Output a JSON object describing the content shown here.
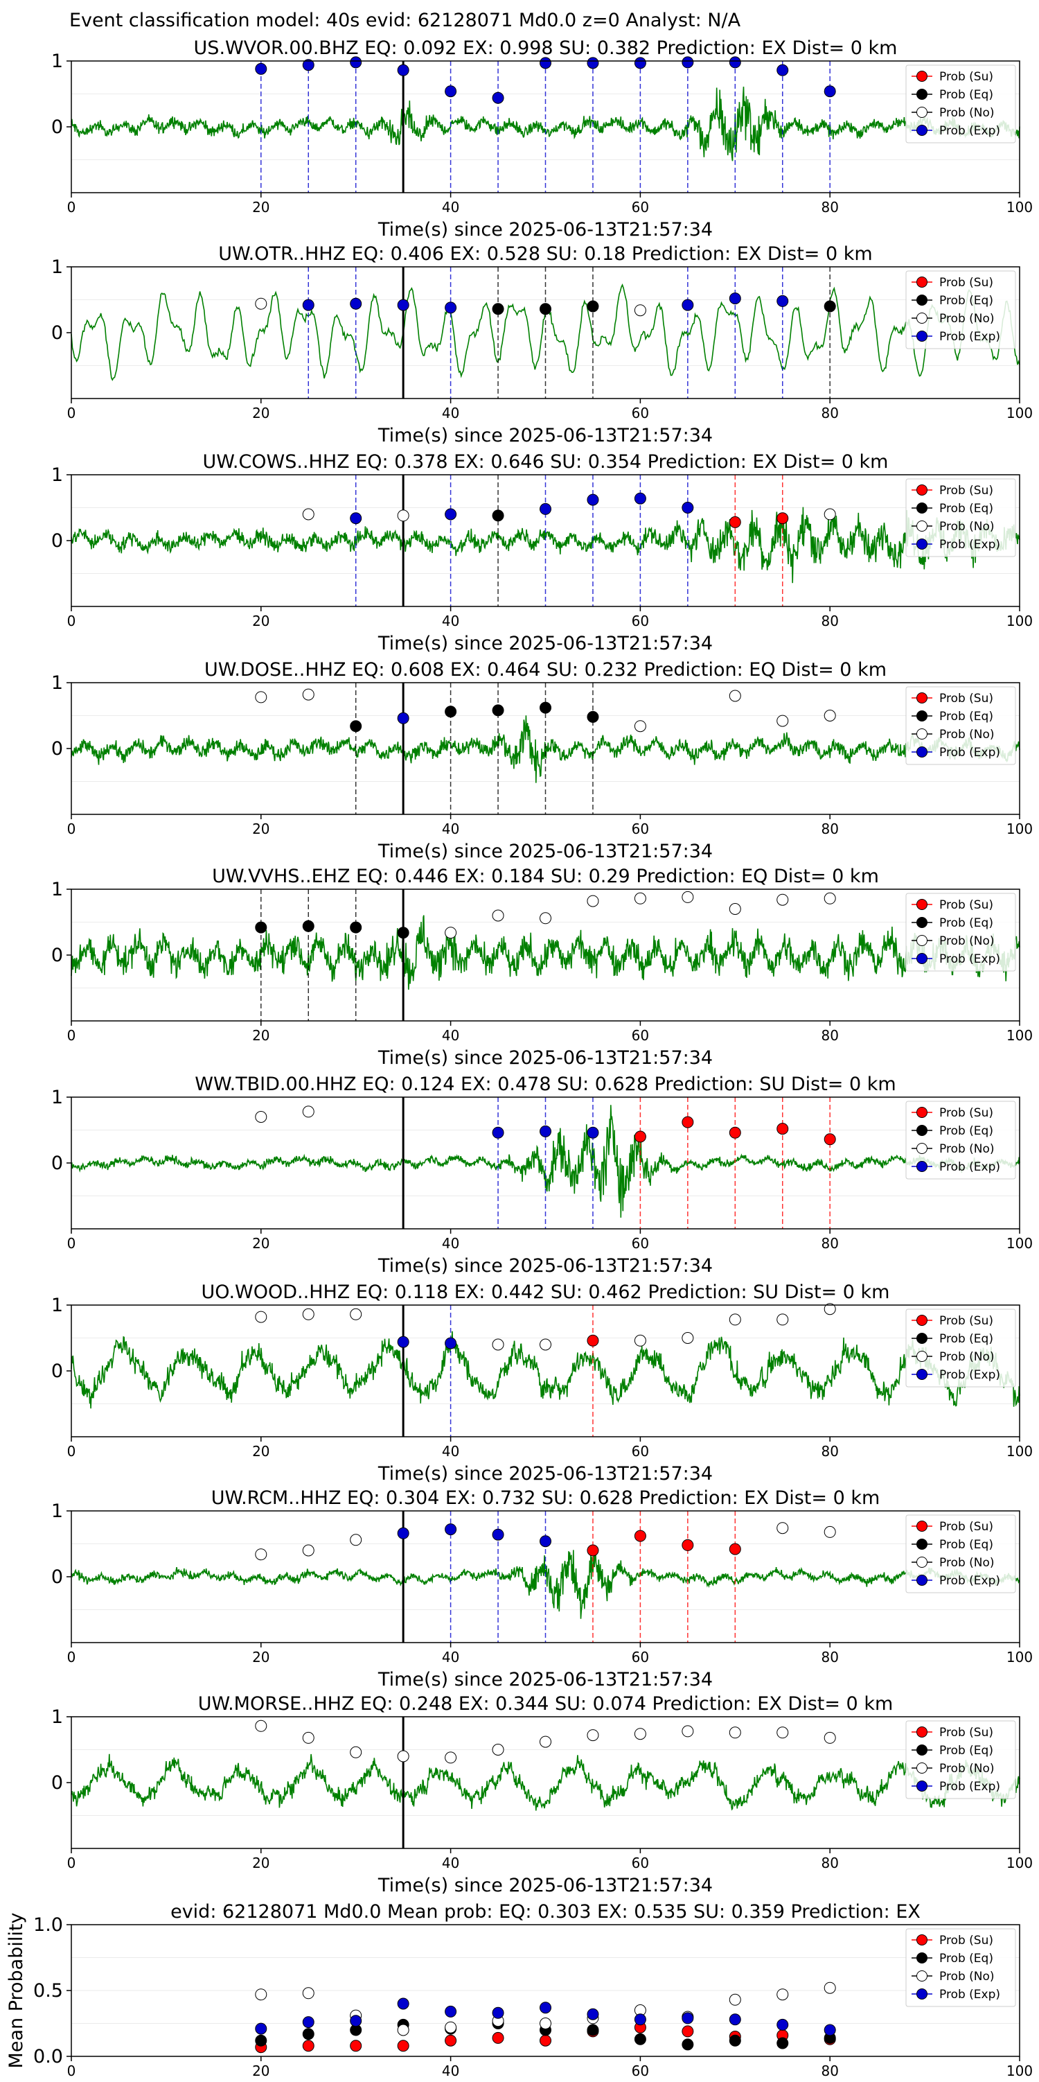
{
  "figure": {
    "suptitle": "Event classification model: 40s evid: 62128071 Md0.0 z=0 Analyst: N/A"
  },
  "legend_labels": [
    "Prob (Su)",
    "Prob (Eq)",
    "Prob (No)",
    "Prob (Exp)"
  ],
  "colors": {
    "waveform": "#008000",
    "su": "#ff0000",
    "eq": "#000000",
    "no": "#ffffff",
    "exp": "#0000cd"
  },
  "chart_data": [
    {
      "type": "line",
      "station": "US.WVOR.00.BHZ",
      "title": "US.WVOR.00.BHZ   EQ: 0.092  EX: 0.998  SU: 0.382   Prediction: EX    Dist= 0 km",
      "xlabel": "Time(s) since 2025-06-13T21:57:34",
      "xlim": [
        0,
        100
      ],
      "ylim": [
        -1,
        1
      ],
      "xticks": [
        0,
        20,
        40,
        60,
        80,
        100
      ],
      "yticks": [
        0,
        1
      ],
      "pick_time": 35,
      "waveform": {
        "amplitude": 0.18,
        "bursts": [
          {
            "t": 70,
            "a": 0.7,
            "w": 4
          },
          {
            "t": 35,
            "a": 0.35,
            "w": 2
          }
        ],
        "style": "noisy"
      },
      "windows": [
        {
          "t": 20,
          "cls": "Exp",
          "p": 0.88
        },
        {
          "t": 25,
          "cls": "Exp",
          "p": 0.94
        },
        {
          "t": 30,
          "cls": "Exp",
          "p": 0.98
        },
        {
          "t": 35,
          "cls": "Exp",
          "p": 0.86
        },
        {
          "t": 40,
          "cls": "Exp",
          "p": 0.54
        },
        {
          "t": 45,
          "cls": "Exp",
          "p": 0.44
        },
        {
          "t": 50,
          "cls": "Exp",
          "p": 0.97
        },
        {
          "t": 55,
          "cls": "Exp",
          "p": 0.97
        },
        {
          "t": 60,
          "cls": "Exp",
          "p": 0.97
        },
        {
          "t": 65,
          "cls": "Exp",
          "p": 0.98
        },
        {
          "t": 70,
          "cls": "Exp",
          "p": 0.98
        },
        {
          "t": 75,
          "cls": "Exp",
          "p": 0.86
        },
        {
          "t": 80,
          "cls": "Exp",
          "p": 0.54
        }
      ]
    },
    {
      "type": "line",
      "station": "UW.OTR..HHZ",
      "title": "UW.OTR..HHZ   EQ: 0.406  EX: 0.528  SU: 0.18   Prediction: EX    Dist= 0 km",
      "xlabel": "Time(s) since 2025-06-13T21:57:34",
      "xlim": [
        0,
        100
      ],
      "ylim": [
        -1,
        1
      ],
      "xticks": [
        0,
        20,
        40,
        60,
        80,
        100
      ],
      "yticks": [
        0,
        1
      ],
      "pick_time": 35,
      "waveform": {
        "amplitude": 0.6,
        "bursts": [],
        "style": "smooth"
      },
      "windows": [
        {
          "t": 20,
          "cls": "No",
          "p": 0.44
        },
        {
          "t": 25,
          "cls": "Exp",
          "p": 0.42
        },
        {
          "t": 30,
          "cls": "Exp",
          "p": 0.44
        },
        {
          "t": 35,
          "cls": "Exp",
          "p": 0.42
        },
        {
          "t": 40,
          "cls": "Exp",
          "p": 0.38
        },
        {
          "t": 45,
          "cls": "Eq",
          "p": 0.36
        },
        {
          "t": 50,
          "cls": "Eq",
          "p": 0.36
        },
        {
          "t": 55,
          "cls": "Eq",
          "p": 0.4
        },
        {
          "t": 60,
          "cls": "No",
          "p": 0.34
        },
        {
          "t": 65,
          "cls": "Exp",
          "p": 0.42
        },
        {
          "t": 70,
          "cls": "Exp",
          "p": 0.52
        },
        {
          "t": 75,
          "cls": "Exp",
          "p": 0.48
        },
        {
          "t": 80,
          "cls": "Eq",
          "p": 0.4
        }
      ]
    },
    {
      "type": "line",
      "station": "UW.COWS..HHZ",
      "title": "UW.COWS..HHZ   EQ: 0.378  EX: 0.646  SU: 0.354   Prediction: EX    Dist= 0 km",
      "xlabel": "Time(s) since 2025-06-13T21:57:34",
      "xlim": [
        0,
        100
      ],
      "ylim": [
        -1,
        1
      ],
      "xticks": [
        0,
        20,
        40,
        60,
        80,
        100
      ],
      "yticks": [
        0,
        1
      ],
      "pick_time": 35,
      "waveform": {
        "amplitude": 0.22,
        "bursts": [
          {
            "t": 73,
            "a": 0.45,
            "w": 8
          },
          {
            "t": 90,
            "a": 0.3,
            "w": 10
          }
        ],
        "style": "noisy"
      },
      "windows": [
        {
          "t": 25,
          "cls": "No",
          "p": 0.4
        },
        {
          "t": 30,
          "cls": "Exp",
          "p": 0.34
        },
        {
          "t": 35,
          "cls": "No",
          "p": 0.38
        },
        {
          "t": 40,
          "cls": "Exp",
          "p": 0.4
        },
        {
          "t": 45,
          "cls": "Eq",
          "p": 0.38
        },
        {
          "t": 50,
          "cls": "Exp",
          "p": 0.48
        },
        {
          "t": 55,
          "cls": "Exp",
          "p": 0.62
        },
        {
          "t": 60,
          "cls": "Exp",
          "p": 0.64
        },
        {
          "t": 65,
          "cls": "Exp",
          "p": 0.5
        },
        {
          "t": 70,
          "cls": "Su",
          "p": 0.28
        },
        {
          "t": 75,
          "cls": "Su",
          "p": 0.34
        },
        {
          "t": 80,
          "cls": "No",
          "p": 0.4
        }
      ]
    },
    {
      "type": "line",
      "station": "UW.DOSE..HHZ",
      "title": "UW.DOSE..HHZ   EQ: 0.608  EX: 0.464  SU: 0.232   Prediction: EQ    Dist= 0 km",
      "xlabel": "Time(s) since 2025-06-13T21:57:34",
      "xlim": [
        0,
        100
      ],
      "ylim": [
        -1,
        1
      ],
      "xticks": [
        0,
        20,
        40,
        60,
        80,
        100
      ],
      "yticks": [
        0,
        1
      ],
      "pick_time": 35,
      "waveform": {
        "amplitude": 0.22,
        "bursts": [
          {
            "t": 48,
            "a": 0.55,
            "w": 2
          }
        ],
        "style": "noisy"
      },
      "windows": [
        {
          "t": 20,
          "cls": "No",
          "p": 0.78
        },
        {
          "t": 25,
          "cls": "No",
          "p": 0.82
        },
        {
          "t": 30,
          "cls": "Eq",
          "p": 0.34
        },
        {
          "t": 35,
          "cls": "Exp",
          "p": 0.46
        },
        {
          "t": 40,
          "cls": "Eq",
          "p": 0.56
        },
        {
          "t": 45,
          "cls": "Eq",
          "p": 0.58
        },
        {
          "t": 50,
          "cls": "Eq",
          "p": 0.62
        },
        {
          "t": 55,
          "cls": "Eq",
          "p": 0.48
        },
        {
          "t": 60,
          "cls": "No",
          "p": 0.34
        },
        {
          "t": 70,
          "cls": "No",
          "p": 0.8
        },
        {
          "t": 75,
          "cls": "No",
          "p": 0.42
        },
        {
          "t": 80,
          "cls": "No",
          "p": 0.5
        }
      ]
    },
    {
      "type": "line",
      "station": "UW.VVHS..EHZ",
      "title": "UW.VVHS..EHZ   EQ: 0.446  EX: 0.184  SU: 0.29   Prediction: EQ    Dist= 0 km",
      "xlabel": "Time(s) since 2025-06-13T21:57:34",
      "xlim": [
        0,
        100
      ],
      "ylim": [
        -1,
        1
      ],
      "xticks": [
        0,
        20,
        40,
        60,
        80,
        100
      ],
      "yticks": [
        0,
        1
      ],
      "pick_time": 35,
      "waveform": {
        "amplitude": 0.45,
        "bursts": [
          {
            "t": 37,
            "a": 0.3,
            "w": 3
          }
        ],
        "style": "noisy"
      },
      "windows": [
        {
          "t": 20,
          "cls": "Eq",
          "p": 0.42
        },
        {
          "t": 25,
          "cls": "Eq",
          "p": 0.44
        },
        {
          "t": 30,
          "cls": "Eq",
          "p": 0.42
        },
        {
          "t": 35,
          "cls": "Eq",
          "p": 0.34
        },
        {
          "t": 40,
          "cls": "No",
          "p": 0.34
        },
        {
          "t": 45,
          "cls": "No",
          "p": 0.6
        },
        {
          "t": 50,
          "cls": "No",
          "p": 0.56
        },
        {
          "t": 55,
          "cls": "No",
          "p": 0.82
        },
        {
          "t": 60,
          "cls": "No",
          "p": 0.86
        },
        {
          "t": 65,
          "cls": "No",
          "p": 0.88
        },
        {
          "t": 70,
          "cls": "No",
          "p": 0.7
        },
        {
          "t": 75,
          "cls": "No",
          "p": 0.84
        },
        {
          "t": 80,
          "cls": "No",
          "p": 0.86
        }
      ]
    },
    {
      "type": "line",
      "station": "WW.TBID.00.HHZ",
      "title": "WW.TBID.00.HHZ   EQ: 0.124  EX: 0.478  SU: 0.628   Prediction: SU    Dist= 0 km",
      "xlabel": "Time(s) since 2025-06-13T21:57:34",
      "xlim": [
        0,
        100
      ],
      "ylim": [
        -1,
        1
      ],
      "xticks": [
        0,
        20,
        40,
        60,
        80,
        100
      ],
      "yticks": [
        0,
        1
      ],
      "pick_time": 35,
      "waveform": {
        "amplitude": 0.12,
        "bursts": [
          {
            "t": 52,
            "a": 0.55,
            "w": 4
          },
          {
            "t": 58,
            "a": 0.9,
            "w": 3
          }
        ],
        "style": "noisy"
      },
      "windows": [
        {
          "t": 20,
          "cls": "No",
          "p": 0.7
        },
        {
          "t": 25,
          "cls": "No",
          "p": 0.78
        },
        {
          "t": 45,
          "cls": "Exp",
          "p": 0.46
        },
        {
          "t": 50,
          "cls": "Exp",
          "p": 0.48
        },
        {
          "t": 55,
          "cls": "Exp",
          "p": 0.46
        },
        {
          "t": 60,
          "cls": "Su",
          "p": 0.4
        },
        {
          "t": 65,
          "cls": "Su",
          "p": 0.62
        },
        {
          "t": 70,
          "cls": "Su",
          "p": 0.46
        },
        {
          "t": 75,
          "cls": "Su",
          "p": 0.52
        },
        {
          "t": 80,
          "cls": "Su",
          "p": 0.36
        }
      ]
    },
    {
      "type": "line",
      "station": "UO.WOOD..HHZ",
      "title": "UO.WOOD..HHZ   EQ: 0.118  EX: 0.442  SU: 0.462   Prediction: SU    Dist= 0 km",
      "xlabel": "Time(s) since 2025-06-13T21:57:34",
      "xlim": [
        0,
        100
      ],
      "ylim": [
        -1,
        1
      ],
      "xticks": [
        0,
        20,
        40,
        60,
        80,
        100
      ],
      "yticks": [
        0,
        1
      ],
      "pick_time": 35,
      "waveform": {
        "amplitude": 0.55,
        "bursts": [],
        "style": "rough"
      },
      "windows": [
        {
          "t": 20,
          "cls": "No",
          "p": 0.82
        },
        {
          "t": 25,
          "cls": "No",
          "p": 0.86
        },
        {
          "t": 30,
          "cls": "No",
          "p": 0.86
        },
        {
          "t": 35,
          "cls": "Exp",
          "p": 0.44
        },
        {
          "t": 40,
          "cls": "Exp",
          "p": 0.42
        },
        {
          "t": 45,
          "cls": "No",
          "p": 0.4
        },
        {
          "t": 50,
          "cls": "No",
          "p": 0.4
        },
        {
          "t": 55,
          "cls": "Su",
          "p": 0.46
        },
        {
          "t": 60,
          "cls": "No",
          "p": 0.46
        },
        {
          "t": 65,
          "cls": "No",
          "p": 0.5
        },
        {
          "t": 70,
          "cls": "No",
          "p": 0.78
        },
        {
          "t": 75,
          "cls": "No",
          "p": 0.78
        },
        {
          "t": 80,
          "cls": "No",
          "p": 0.94
        }
      ]
    },
    {
      "type": "line",
      "station": "UW.RCM..HHZ",
      "title": "UW.RCM..HHZ   EQ: 0.304  EX: 0.732  SU: 0.628   Prediction: EX    Dist= 0 km",
      "xlabel": "Time(s) since 2025-06-13T21:57:34",
      "xlim": [
        0,
        100
      ],
      "ylim": [
        -1,
        1
      ],
      "xticks": [
        0,
        20,
        40,
        60,
        80,
        100
      ],
      "yticks": [
        0,
        1
      ],
      "pick_time": 35,
      "waveform": {
        "amplitude": 0.12,
        "bursts": [
          {
            "t": 53,
            "a": 0.7,
            "w": 4
          }
        ],
        "style": "noisy"
      },
      "windows": [
        {
          "t": 20,
          "cls": "No",
          "p": 0.34
        },
        {
          "t": 25,
          "cls": "No",
          "p": 0.4
        },
        {
          "t": 30,
          "cls": "No",
          "p": 0.56
        },
        {
          "t": 35,
          "cls": "Exp",
          "p": 0.66
        },
        {
          "t": 40,
          "cls": "Exp",
          "p": 0.72
        },
        {
          "t": 45,
          "cls": "Exp",
          "p": 0.64
        },
        {
          "t": 50,
          "cls": "Exp",
          "p": 0.54
        },
        {
          "t": 55,
          "cls": "Su",
          "p": 0.4
        },
        {
          "t": 60,
          "cls": "Su",
          "p": 0.62
        },
        {
          "t": 65,
          "cls": "Su",
          "p": 0.48
        },
        {
          "t": 70,
          "cls": "Su",
          "p": 0.42
        },
        {
          "t": 75,
          "cls": "No",
          "p": 0.74
        },
        {
          "t": 80,
          "cls": "No",
          "p": 0.68
        }
      ]
    },
    {
      "type": "line",
      "station": "UW.MORSE..HHZ",
      "title": "UW.MORSE..HHZ   EQ: 0.248  EX: 0.344  SU: 0.074   Prediction: EX    Dist= 0 km",
      "xlabel": "Time(s) since 2025-06-13T21:57:34",
      "xlim": [
        0,
        100
      ],
      "ylim": [
        -1,
        1
      ],
      "xticks": [
        0,
        20,
        40,
        60,
        80,
        100
      ],
      "yticks": [
        0,
        1
      ],
      "pick_time": 35,
      "waveform": {
        "amplitude": 0.4,
        "bursts": [],
        "style": "rough"
      },
      "windows": [
        {
          "t": 20,
          "cls": "No",
          "p": 0.86
        },
        {
          "t": 25,
          "cls": "No",
          "p": 0.68
        },
        {
          "t": 30,
          "cls": "No",
          "p": 0.46
        },
        {
          "t": 35,
          "cls": "No",
          "p": 0.4
        },
        {
          "t": 40,
          "cls": "No",
          "p": 0.38
        },
        {
          "t": 45,
          "cls": "No",
          "p": 0.5
        },
        {
          "t": 50,
          "cls": "No",
          "p": 0.62
        },
        {
          "t": 55,
          "cls": "No",
          "p": 0.72
        },
        {
          "t": 60,
          "cls": "No",
          "p": 0.74
        },
        {
          "t": 65,
          "cls": "No",
          "p": 0.78
        },
        {
          "t": 70,
          "cls": "No",
          "p": 0.76
        },
        {
          "t": 75,
          "cls": "No",
          "p": 0.76
        },
        {
          "t": 80,
          "cls": "No",
          "p": 0.68
        }
      ]
    },
    {
      "type": "scatter",
      "title": "evid: 62128071  Md0.0   Mean prob:    EQ: 0.303  EX: 0.535  SU: 0.359   Prediction: EX",
      "ylabel": "Mean Probability",
      "xlim": [
        0,
        100
      ],
      "ylim": [
        0,
        1
      ],
      "xticks": [
        0,
        20,
        40,
        60,
        80,
        100
      ],
      "yticks": [
        0.0,
        0.5,
        1.0
      ],
      "x": [
        20,
        25,
        30,
        35,
        40,
        45,
        50,
        55,
        60,
        65,
        70,
        75,
        80
      ],
      "series": [
        {
          "name": "Prob (Su)",
          "cls": "Su",
          "values": [
            0.07,
            0.08,
            0.08,
            0.08,
            0.12,
            0.14,
            0.12,
            0.19,
            0.22,
            0.19,
            0.15,
            0.16,
            0.13
          ]
        },
        {
          "name": "Prob (Eq)",
          "cls": "Eq",
          "values": [
            0.12,
            0.17,
            0.2,
            0.24,
            0.21,
            0.25,
            0.2,
            0.2,
            0.13,
            0.09,
            0.12,
            0.1,
            0.14
          ]
        },
        {
          "name": "Prob (No)",
          "cls": "No",
          "values": [
            0.47,
            0.48,
            0.31,
            0.2,
            0.22,
            0.27,
            0.25,
            0.29,
            0.35,
            0.3,
            0.43,
            0.47,
            0.52
          ]
        },
        {
          "name": "Prob (Exp)",
          "cls": "Exp",
          "values": [
            0.21,
            0.26,
            0.27,
            0.4,
            0.34,
            0.33,
            0.37,
            0.32,
            0.28,
            0.29,
            0.28,
            0.24,
            0.2
          ]
        }
      ]
    }
  ]
}
